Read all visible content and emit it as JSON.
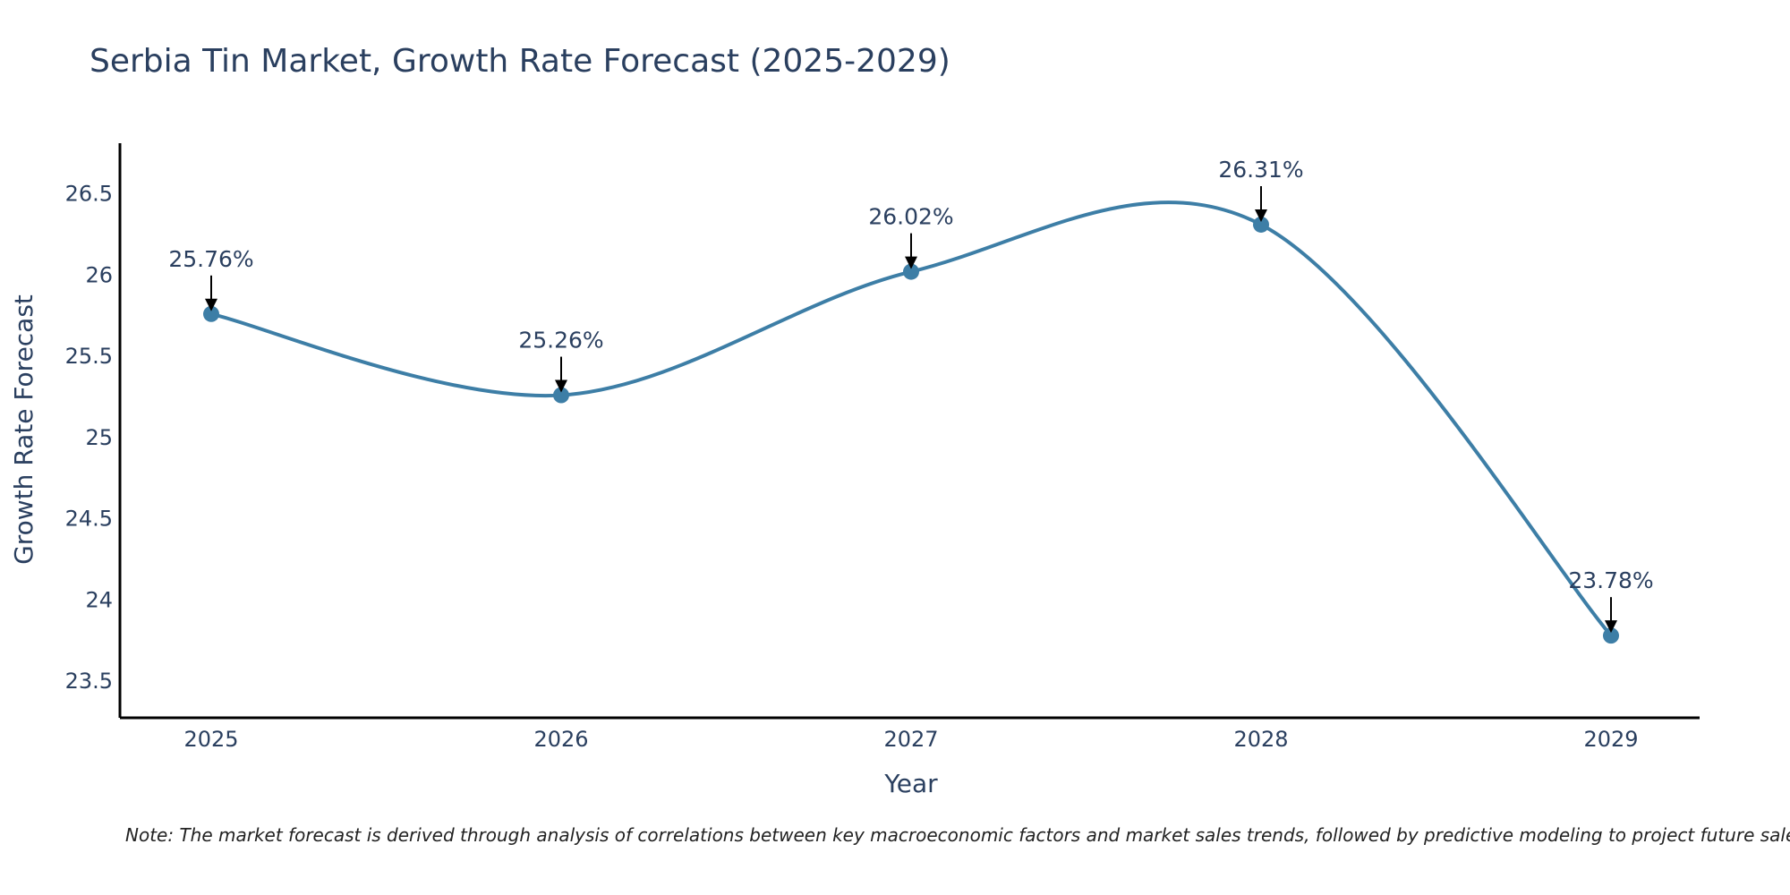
{
  "chart_data": {
    "type": "line",
    "title": "Serbia Tin Market, Growth Rate Forecast (2025-2029)",
    "xlabel": "Year",
    "ylabel": "Growth Rate Forecast",
    "categories": [
      "2025",
      "2026",
      "2027",
      "2028",
      "2029"
    ],
    "series": [
      {
        "name": "Growth Rate Forecast",
        "values": [
          25.76,
          25.26,
          26.02,
          26.31,
          23.78
        ],
        "data_labels": [
          "25.76%",
          "25.26%",
          "26.02%",
          "26.31%",
          "23.78%"
        ],
        "color": "#3d7ea6"
      }
    ],
    "yticks": [
      23.5,
      24,
      24.5,
      25,
      25.5,
      26,
      26.5
    ],
    "ytick_labels": [
      "23.5",
      "24",
      "24.5",
      "25",
      "25.5",
      "26",
      "26.5"
    ],
    "ylim": [
      23.28,
      26.8
    ],
    "grid": false,
    "legend": "none",
    "note": "Note: The market forecast is derived through analysis of correlations between key macroeconomic factors and market sales trends, followed by predictive modeling to project future sales."
  },
  "colors": {
    "line": "#3d7ea6",
    "marker": "#3d7ea6",
    "axis": "#000000",
    "text": "#2a3f5f",
    "arrow": "#000000"
  }
}
